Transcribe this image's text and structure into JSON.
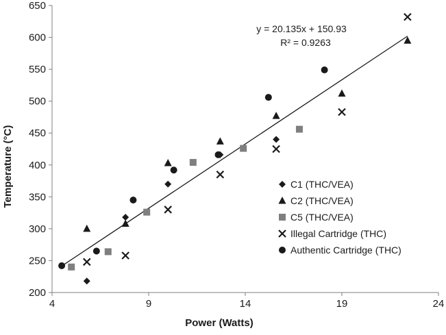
{
  "chart_data": {
    "type": "scatter",
    "title": "",
    "xlabel": "Power (Watts)",
    "ylabel": "Temperature (°C)",
    "xlim": [
      4,
      24
    ],
    "ylim": [
      200,
      650
    ],
    "xticks": [
      4,
      9,
      14,
      19,
      24
    ],
    "yticks": [
      200,
      250,
      300,
      350,
      400,
      450,
      500,
      550,
      600,
      650
    ],
    "grid": false,
    "legend_position": "right",
    "series": [
      {
        "name": "C1 (THC/VEA)",
        "marker": "diamond",
        "color": "#1a1a1a",
        "points": [
          [
            5.8,
            218
          ],
          [
            7.8,
            318
          ],
          [
            10.0,
            370
          ],
          [
            12.7,
            416
          ],
          [
            15.6,
            440
          ]
        ]
      },
      {
        "name": "C2 (THC/VEA)",
        "marker": "triangle",
        "color": "#1a1a1a",
        "points": [
          [
            5.8,
            300
          ],
          [
            7.8,
            308
          ],
          [
            10.0,
            403
          ],
          [
            12.7,
            437
          ],
          [
            15.6,
            477
          ],
          [
            19.0,
            512
          ],
          [
            22.4,
            595
          ]
        ]
      },
      {
        "name": "C5 (THC/VEA)",
        "marker": "square",
        "color": "#7f7f7f",
        "points": [
          [
            5.0,
            240
          ],
          [
            6.9,
            264
          ],
          [
            8.9,
            326
          ],
          [
            11.3,
            404
          ],
          [
            13.9,
            426
          ],
          [
            16.8,
            456
          ]
        ]
      },
      {
        "name": "Illegal Cartridge (THC)",
        "marker": "x",
        "color": "#1a1a1a",
        "points": [
          [
            5.8,
            248
          ],
          [
            7.8,
            258
          ],
          [
            10.0,
            330
          ],
          [
            12.7,
            385
          ],
          [
            15.6,
            425
          ],
          [
            19.0,
            483
          ],
          [
            22.4,
            632
          ]
        ]
      },
      {
        "name": "Authentic Cartridge (THC)",
        "marker": "circle",
        "color": "#1a1a1a",
        "points": [
          [
            4.5,
            242
          ],
          [
            6.3,
            265
          ],
          [
            8.2,
            345
          ],
          [
            10.3,
            392
          ],
          [
            12.6,
            416
          ],
          [
            15.2,
            506
          ],
          [
            18.1,
            549
          ]
        ]
      }
    ],
    "trendline": {
      "slope": 20.135,
      "intercept": 150.93,
      "x_range": [
        4.5,
        22.4
      ],
      "equation": "y = 20.135x + 150.93",
      "r_squared": "R² = 0.9263"
    }
  }
}
